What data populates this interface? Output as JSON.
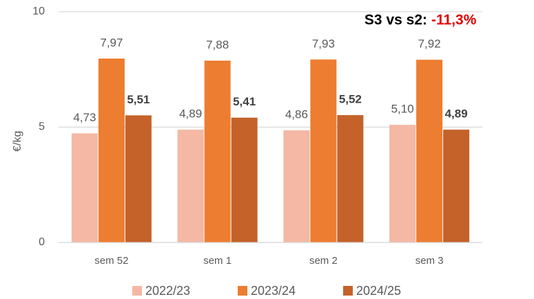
{
  "chart_data": {
    "type": "bar",
    "categories": [
      "sem 52",
      "sem 1",
      "sem 2",
      "sem 3"
    ],
    "series": [
      {
        "name": "2022/23",
        "color": "#f4b8a4",
        "values": [
          4.73,
          4.89,
          4.86,
          5.1
        ],
        "value_labels": [
          "4,73",
          "4,89",
          "4,86",
          "5,10"
        ]
      },
      {
        "name": "2023/24",
        "color": "#ed7d31",
        "values": [
          7.97,
          7.88,
          7.93,
          7.92
        ],
        "value_labels": [
          "7,97",
          "7,88",
          "7,93",
          "7,92"
        ]
      },
      {
        "name": "2024/25",
        "color": "#c4622a",
        "values": [
          5.51,
          5.41,
          5.52,
          4.89
        ],
        "value_labels": [
          "5,51",
          "5,41",
          "5,52",
          "4,89"
        ],
        "bold_labels": true
      }
    ],
    "y_label": "€/kg",
    "annotation": {
      "text": "S3 vs s2:",
      "value": "-11,3%"
    },
    "ylim": [
      0,
      10
    ],
    "yticks": [
      0,
      5,
      10
    ],
    "grid": true
  }
}
